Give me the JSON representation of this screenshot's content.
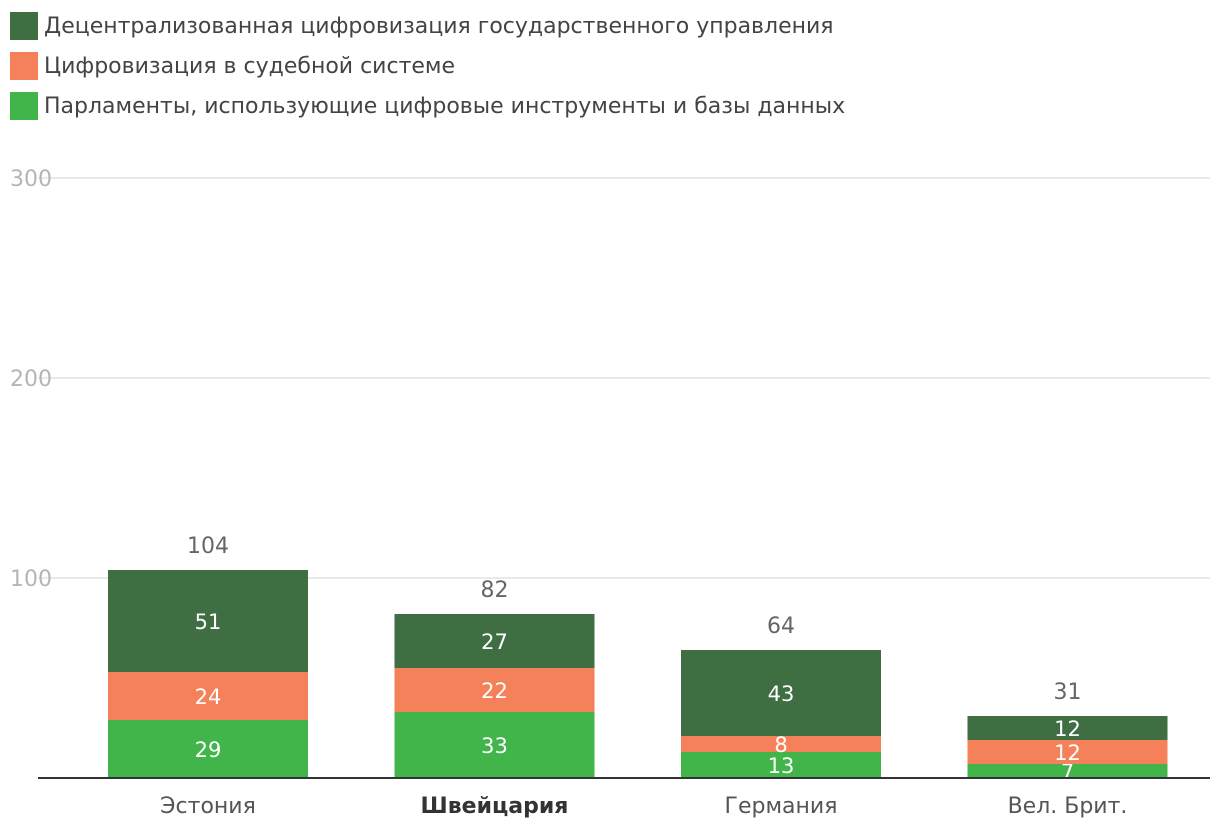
{
  "chart_data": {
    "type": "bar",
    "stacked": true,
    "categories": [
      "Эстония",
      "Швейцария",
      "Германия",
      "Вел. Брит."
    ],
    "highlighted_category": "Швейцария",
    "series": [
      {
        "name": "Парламенты, использующие цифровые инструменты и базы данных",
        "color": "#41b549",
        "values": [
          29,
          33,
          13,
          7
        ]
      },
      {
        "name": "Цифровизация в судебной системе",
        "color": "#f5815a",
        "values": [
          24,
          22,
          8,
          12
        ]
      },
      {
        "name": "Децентрализованная цифровизация государственного управления",
        "color": "#3e6e42",
        "values": [
          51,
          27,
          43,
          12
        ]
      }
    ],
    "totals": [
      104,
      82,
      64,
      31
    ],
    "legend_order": [
      2,
      1,
      0
    ],
    "ylim": [
      0,
      300
    ],
    "yticks": [
      100,
      200,
      300
    ],
    "grid": true,
    "legend_position": "top-left"
  }
}
